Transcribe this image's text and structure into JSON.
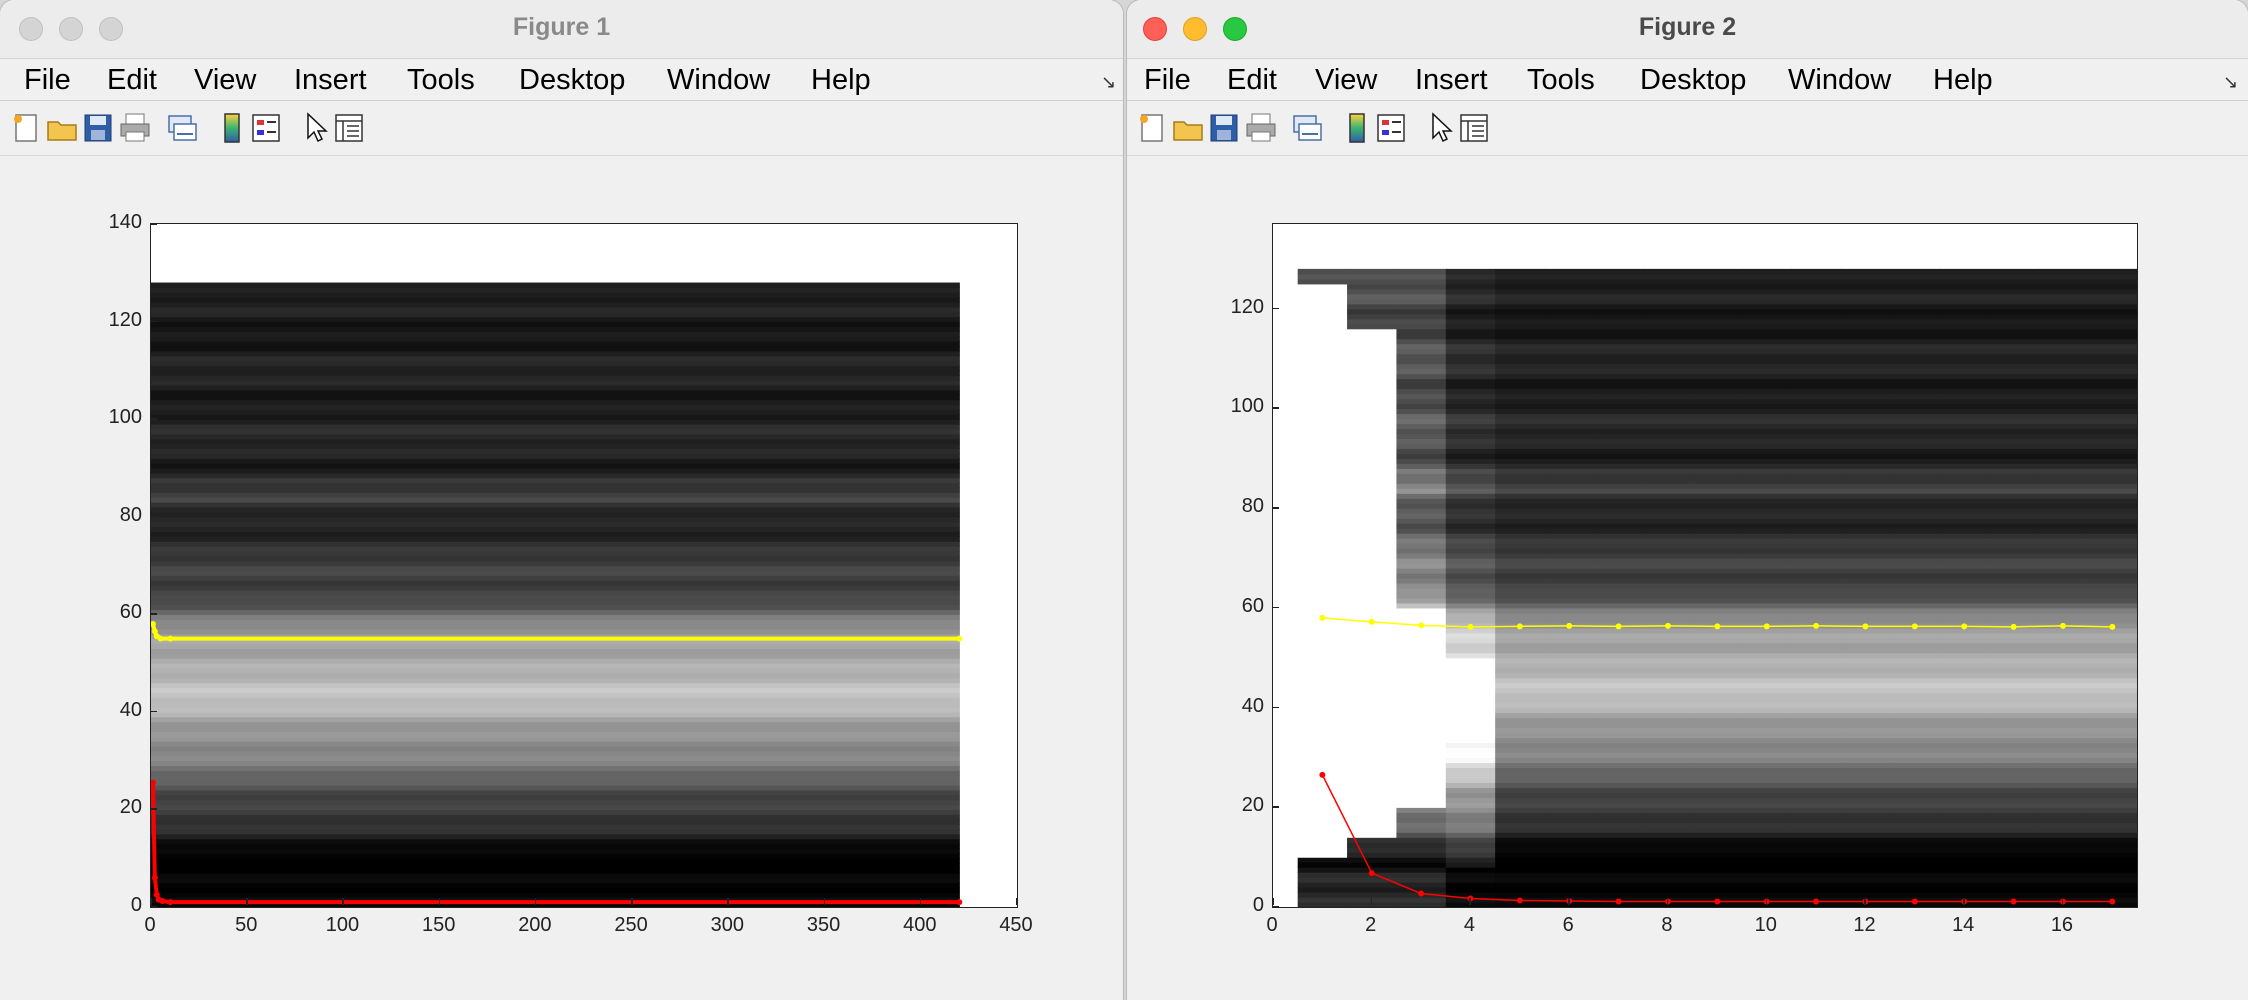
{
  "windows": [
    {
      "title": "Figure 1",
      "active": false,
      "menu": [
        "File",
        "Edit",
        "View",
        "Insert",
        "Tools",
        "Desktop",
        "Window",
        "Help"
      ],
      "dock_icon": "undock-arrow-icon"
    },
    {
      "title": "Figure 2",
      "active": true,
      "menu": [
        "File",
        "Edit",
        "View",
        "Insert",
        "Tools",
        "Desktop",
        "Window",
        "Help"
      ],
      "dock_icon": "undock-arrow-icon"
    }
  ],
  "toolbar_icons": [
    "new-figure-icon",
    "open-file-icon",
    "save-icon",
    "print-icon",
    "link-plot-icon",
    "insert-colorbar-icon",
    "insert-legend-icon",
    "edit-plot-pointer-icon",
    "property-inspector-icon"
  ],
  "colors": {
    "yellow_line": "#ffff00",
    "red_line": "#ff0000",
    "titlebar": "#ececec"
  },
  "chart_data": [
    {
      "type": "heatmap",
      "title": "",
      "xlabel": "",
      "ylabel": "",
      "xlim": [
        0,
        450
      ],
      "ylim": [
        0,
        140
      ],
      "xticks": [
        "0",
        "50",
        "100",
        "150",
        "200",
        "250",
        "300",
        "350",
        "400",
        "450"
      ],
      "yticks": [
        "0",
        "20",
        "40",
        "60",
        "80",
        "100",
        "120",
        "140"
      ],
      "image_extent": {
        "x": [
          0,
          420
        ],
        "y": [
          0,
          128
        ]
      },
      "colormap": "gray",
      "series": [
        {
          "color": "#ffff00",
          "x": [
            1,
            2,
            3,
            5,
            10,
            420
          ],
          "y": [
            58,
            56.5,
            55.5,
            55,
            55,
            55
          ]
        },
        {
          "color": "#ff0000",
          "x": [
            1,
            2,
            3,
            4,
            6,
            10,
            420
          ],
          "y": [
            25.5,
            6,
            2.5,
            1.5,
            1.2,
            1,
            1
          ]
        }
      ]
    },
    {
      "type": "heatmap",
      "title": "",
      "xlabel": "",
      "ylabel": "",
      "xlim": [
        0,
        17.5
      ],
      "ylim": [
        0,
        137
      ],
      "xticks": [
        "0",
        "2",
        "4",
        "6",
        "8",
        "10",
        "12",
        "14",
        "16"
      ],
      "yticks": [
        "0",
        "20",
        "40",
        "60",
        "80",
        "100",
        "120"
      ],
      "image_extent": {
        "x": [
          0.5,
          17.5
        ],
        "y": [
          0,
          128
        ]
      },
      "colormap": "gray",
      "series": [
        {
          "color": "#ffff00",
          "x": [
            1,
            2,
            3,
            4,
            5,
            6,
            7,
            8,
            9,
            10,
            11,
            12,
            13,
            14,
            15,
            16,
            17
          ],
          "y": [
            58,
            57.2,
            56.5,
            56.2,
            56.3,
            56.4,
            56.3,
            56.4,
            56.3,
            56.3,
            56.4,
            56.3,
            56.3,
            56.3,
            56.2,
            56.4,
            56.2
          ]
        },
        {
          "color": "#ff0000",
          "x": [
            1,
            2,
            3,
            4,
            5,
            6,
            7,
            8,
            9,
            10,
            11,
            12,
            13,
            14,
            15,
            16,
            17
          ],
          "y": [
            26.5,
            6.8,
            2.7,
            1.7,
            1.3,
            1.2,
            1.1,
            1.1,
            1.1,
            1.1,
            1.1,
            1.1,
            1.1,
            1.1,
            1.1,
            1.1,
            1.1
          ]
        }
      ]
    }
  ]
}
